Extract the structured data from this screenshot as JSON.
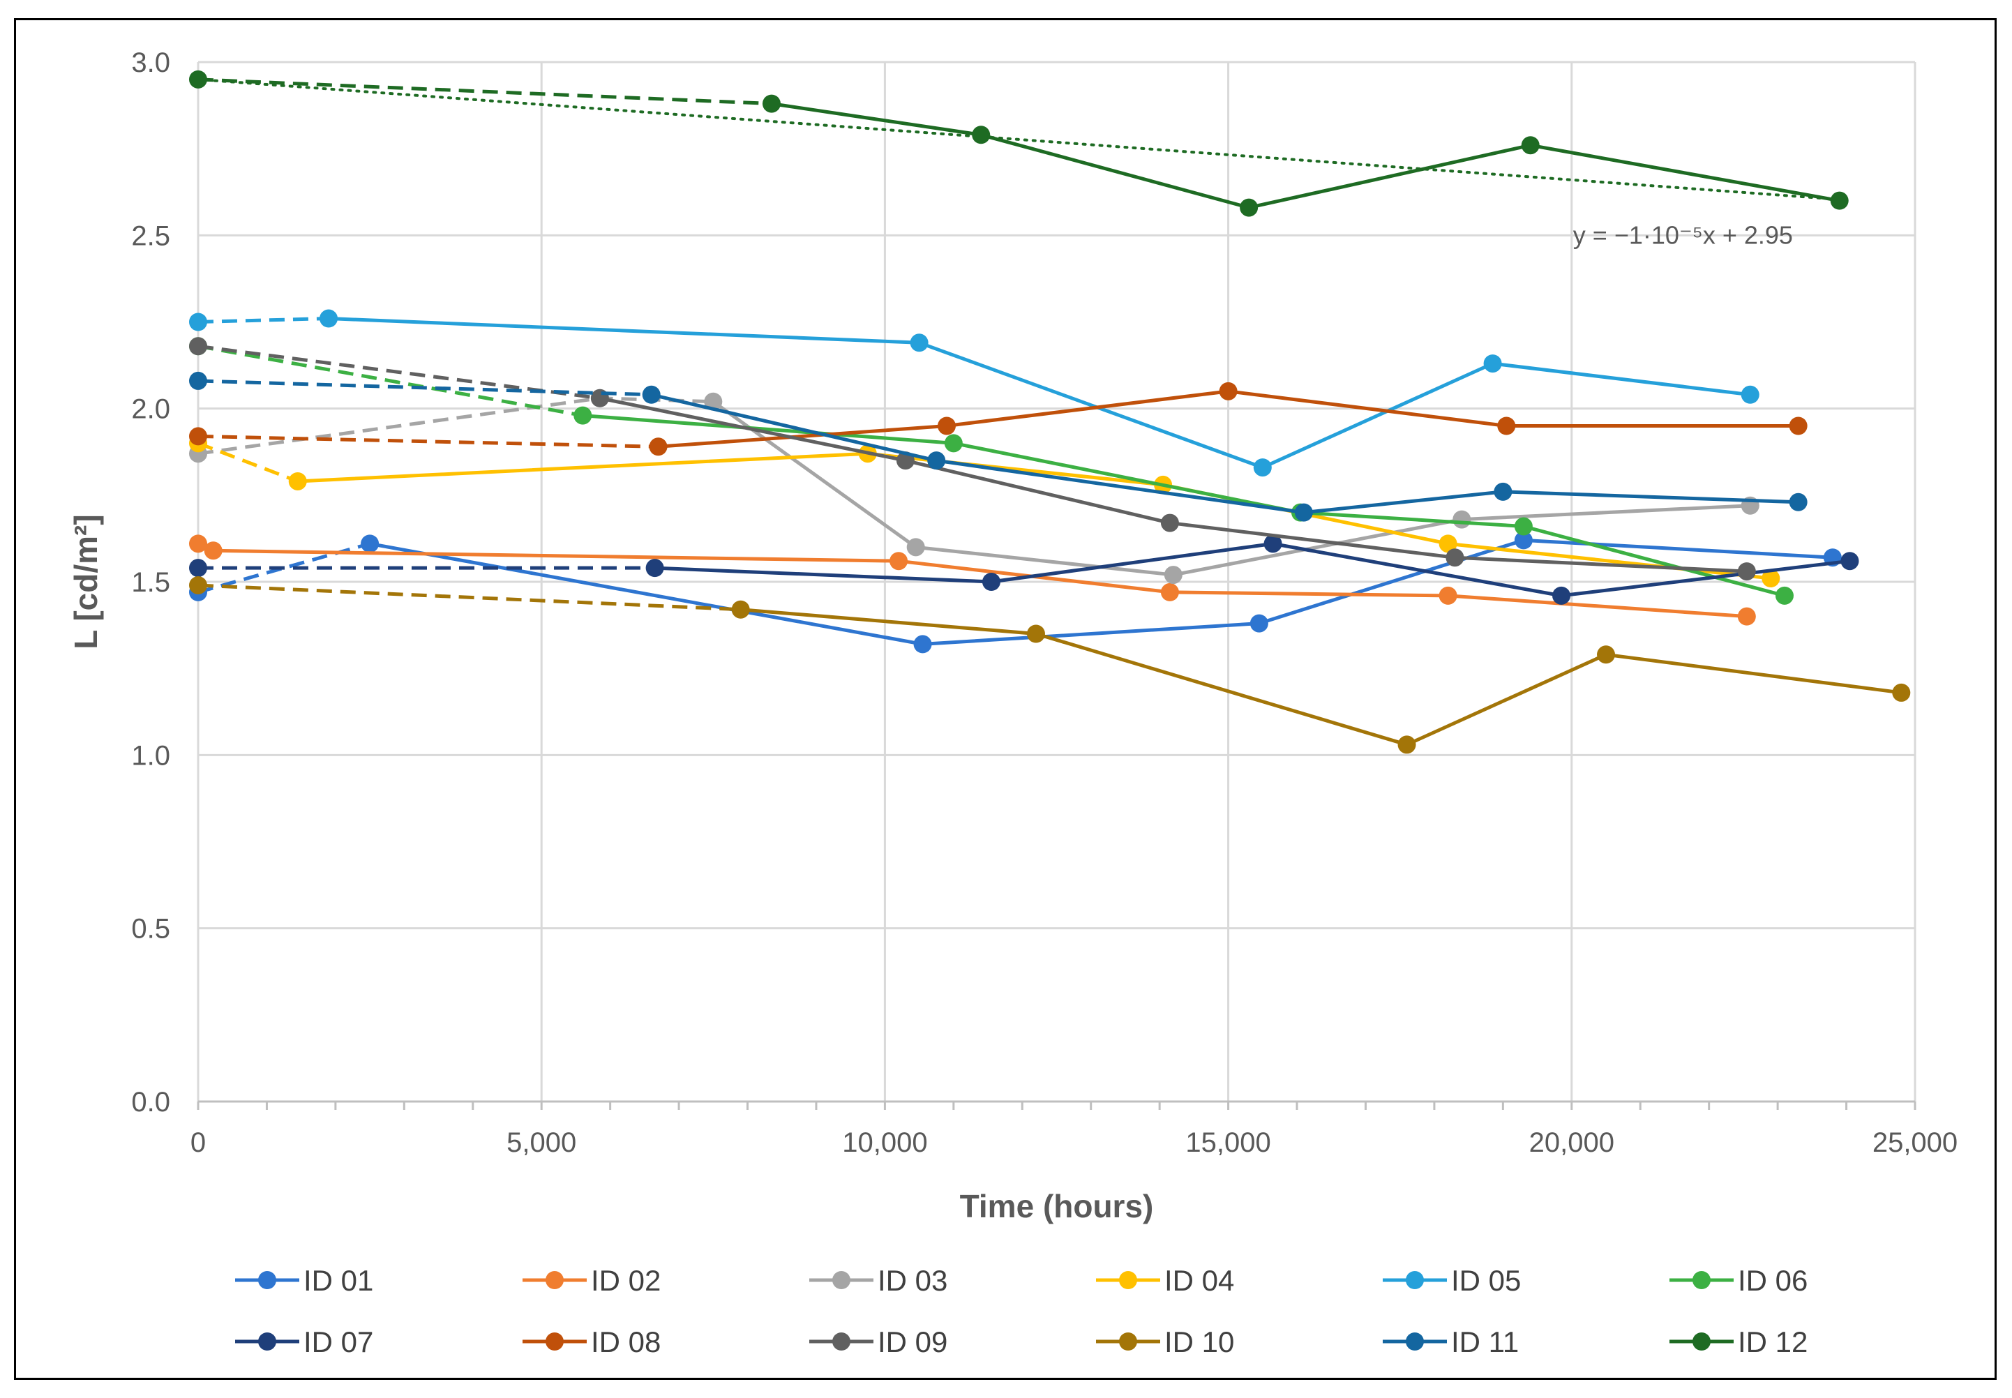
{
  "chart_data": {
    "type": "line",
    "title": "",
    "xlabel": "Time (hours)",
    "ylabel": "L [cd/m²]",
    "xlim": [
      0,
      25000
    ],
    "ylim": [
      0,
      3.0
    ],
    "xticks": [
      0,
      5000,
      10000,
      15000,
      20000,
      25000
    ],
    "xtick_labels": [
      "0",
      "5,000",
      "10,000",
      "15,000",
      "20,000",
      "25,000"
    ],
    "yticks": [
      0,
      0.5,
      1.0,
      1.5,
      2.0,
      2.5,
      3.0
    ],
    "ytick_labels": [
      "0.0",
      "0.5",
      "1.0",
      "1.5",
      "2.0",
      "2.5",
      "3.0"
    ],
    "grid": true,
    "legend_position": "bottom",
    "trendline": {
      "series": "ID 12",
      "equation": "y = −1·10⁻⁵x + 2.95",
      "slope": -1.45e-05,
      "intercept": 2.95,
      "x_range": [
        0,
        23900
      ],
      "color": "#1E6B23"
    },
    "series": [
      {
        "name": "ID 01",
        "color": "#2E75D0",
        "dashed_to_index": 1,
        "x": [
          0,
          2500,
          10550,
          15450,
          19300,
          23800
        ],
        "y": [
          1.47,
          1.61,
          1.32,
          1.38,
          1.62,
          1.57
        ]
      },
      {
        "name": "ID 02",
        "color": "#F07D2F",
        "dashed_to_index": 0,
        "x": [
          0,
          220,
          10200,
          14150,
          18200,
          22550
        ],
        "y": [
          1.61,
          1.59,
          1.56,
          1.47,
          1.46,
          1.4
        ]
      },
      {
        "name": "ID 03",
        "color": "#A5A5A5",
        "dashed_to_index": 2,
        "x": [
          0,
          5850,
          7500,
          10450,
          14200,
          18400,
          22600
        ],
        "y": [
          1.87,
          2.03,
          2.02,
          1.6,
          1.52,
          1.68,
          1.72
        ]
      },
      {
        "name": "ID 04",
        "color": "#FFC000",
        "dashed_to_index": 1,
        "x": [
          0,
          1450,
          9750,
          14050,
          18200,
          22900
        ],
        "y": [
          1.9,
          1.79,
          1.87,
          1.78,
          1.61,
          1.51
        ]
      },
      {
        "name": "ID 05",
        "color": "#25A0DA",
        "dashed_to_index": 1,
        "x": [
          0,
          1900,
          10500,
          15500,
          18850,
          22600
        ],
        "y": [
          2.25,
          2.26,
          2.19,
          1.83,
          2.13,
          2.04
        ]
      },
      {
        "name": "ID 06",
        "color": "#3CB043",
        "dashed_to_index": 1,
        "x": [
          0,
          5600,
          11000,
          16050,
          19300,
          23100
        ],
        "y": [
          2.18,
          1.98,
          1.9,
          1.7,
          1.66,
          1.46
        ]
      },
      {
        "name": "ID 07",
        "color": "#1F3F7A",
        "dashed_to_index": 1,
        "x": [
          0,
          6650,
          11550,
          15650,
          19850,
          24050
        ],
        "y": [
          1.54,
          1.54,
          1.5,
          1.61,
          1.46,
          1.56
        ]
      },
      {
        "name": "ID 08",
        "color": "#C0500A",
        "dashed_to_index": 1,
        "x": [
          0,
          6700,
          10900,
          15000,
          19050,
          23300
        ],
        "y": [
          1.92,
          1.89,
          1.95,
          2.05,
          1.95,
          1.95
        ]
      },
      {
        "name": "ID 09",
        "color": "#606060",
        "dashed_to_index": 1,
        "x": [
          0,
          5850,
          10300,
          14150,
          18300,
          22550
        ],
        "y": [
          2.18,
          2.03,
          1.85,
          1.67,
          1.57,
          1.53
        ]
      },
      {
        "name": "ID 10",
        "color": "#A37508",
        "dashed_to_index": 1,
        "x": [
          0,
          7900,
          12200,
          17600,
          20500,
          24800
        ],
        "y": [
          1.49,
          1.42,
          1.35,
          1.03,
          1.29,
          1.18
        ]
      },
      {
        "name": "ID 11",
        "color": "#1466A0",
        "dashed_to_index": 1,
        "x": [
          0,
          6600,
          10750,
          16100,
          19000,
          23300
        ],
        "y": [
          2.08,
          2.04,
          1.85,
          1.7,
          1.76,
          1.73
        ]
      },
      {
        "name": "ID 12",
        "color": "#1E6B23",
        "dashed_to_index": 1,
        "x": [
          0,
          8350,
          11400,
          15300,
          19400,
          23900
        ],
        "y": [
          2.95,
          2.88,
          2.79,
          2.58,
          2.76,
          2.6
        ]
      }
    ]
  }
}
